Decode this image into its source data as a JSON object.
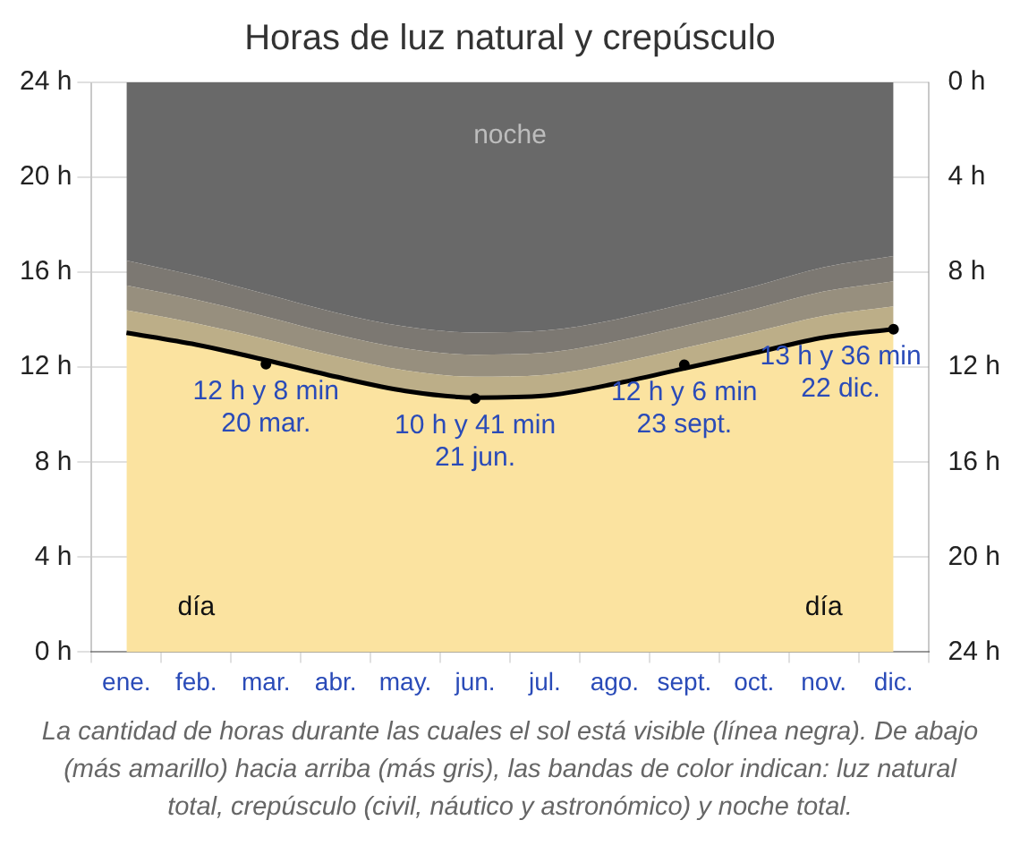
{
  "chart_data": {
    "type": "area",
    "title": "Horas de luz natural y crepúsculo",
    "categories": [
      "ene.",
      "feb.",
      "mar.",
      "abr.",
      "may.",
      "jun.",
      "jul.",
      "ago.",
      "sept.",
      "oct.",
      "nov.",
      "dic."
    ],
    "stacked": true,
    "grid": true,
    "legend": false,
    "ylim": [
      0,
      24
    ],
    "yticks": [
      {
        "value": 0,
        "label": "0 h"
      },
      {
        "value": 4,
        "label": "4 h"
      },
      {
        "value": 8,
        "label": "8 h"
      },
      {
        "value": 12,
        "label": "12 h"
      },
      {
        "value": 16,
        "label": "16 h"
      },
      {
        "value": 20,
        "label": "20 h"
      },
      {
        "value": 24,
        "label": "24 h"
      }
    ],
    "y2lim": [
      24,
      0
    ],
    "y2ticks": [
      {
        "value": 0,
        "label": "0 h"
      },
      {
        "value": 4,
        "label": "4 h"
      },
      {
        "value": 8,
        "label": "8 h"
      },
      {
        "value": 12,
        "label": "12 h"
      },
      {
        "value": 16,
        "label": "16 h"
      },
      {
        "value": 20,
        "label": "20 h"
      },
      {
        "value": 24,
        "label": "24 h"
      }
    ],
    "series": [
      {
        "name": "día",
        "color": "#fbe3a0",
        "values": [
          13.45,
          12.95,
          12.3,
          11.6,
          11.0,
          10.72,
          10.8,
          11.3,
          11.95,
          12.6,
          13.25,
          13.6
        ]
      },
      {
        "color": "#bcae88",
        "values": [
          0.95,
          0.9,
          0.88,
          0.86,
          0.87,
          0.88,
          0.88,
          0.86,
          0.86,
          0.88,
          0.92,
          0.96
        ]
      },
      {
        "color": "#978f7e",
        "values": [
          1.05,
          1.0,
          0.95,
          0.92,
          0.92,
          0.93,
          0.93,
          0.92,
          0.93,
          0.96,
          1.02,
          1.06
        ]
      },
      {
        "color": "#7c7872",
        "values": [
          1.05,
          1.0,
          0.95,
          0.92,
          0.92,
          0.93,
          0.93,
          0.92,
          0.93,
          0.96,
          1.02,
          1.06
        ]
      },
      {
        "name": "noche",
        "color": "#696969",
        "values": [
          7.5,
          8.15,
          8.92,
          9.7,
          10.29,
          10.54,
          10.46,
          10.0,
          9.33,
          8.6,
          7.79,
          7.32
        ]
      },
      {
        "type": "scatter",
        "color": "#000000",
        "x": [
          "mar.",
          "jun.",
          "sept.",
          "dic."
        ],
        "values": [
          12.13,
          10.68,
          12.1,
          13.6
        ]
      }
    ],
    "annotations": [
      {
        "text": "12 h y 8 min\n20 mar.",
        "x": "mar.",
        "y": 12.13
      },
      {
        "text": "10 h y 41 min\n21 jun.",
        "x": "jun.",
        "y": 10.68
      },
      {
        "text": "12 h y 6 min\n23 sept.",
        "x": "sept.",
        "y": 12.1
      },
      {
        "text": "13 h y 36 min\n22 dic.",
        "x": "dic.",
        "y": 13.6
      },
      "La cantidad de horas durante las cuales el sol está visible (línea negra). De abajo (más amarillo) hacia arriba (más gris), las bandas de color indican: luz natural total, crepúsculo (civil, náutico y astronómico) y noche total."
    ]
  }
}
